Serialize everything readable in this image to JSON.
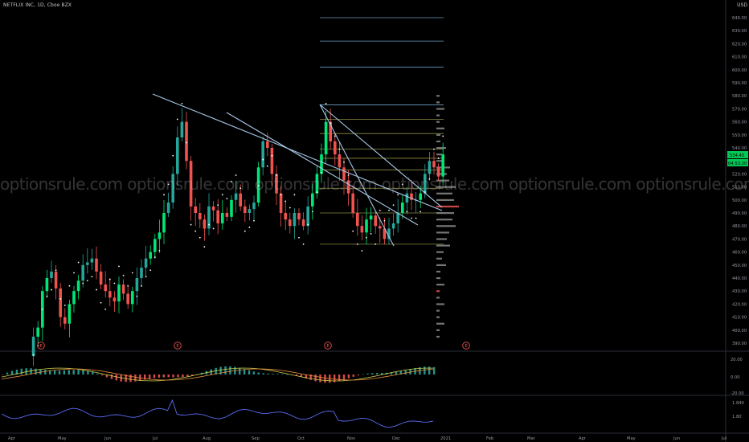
{
  "header": {
    "symbol_line": "NETFLIX INC, 1D, Cboe BZX",
    "currency": "USD"
  },
  "watermark": {
    "text": "optionsrule.com optionsrule.com optionsrule.com optionsrule.com optionsrule.com optionsrule.com optionsrule.com optionsrule.com optionsrule.com optio"
  },
  "price_axis": [
    "640.00",
    "630.00",
    "620.00",
    "610.00",
    "600.00",
    "590.00",
    "580.00",
    "570.00",
    "560.00",
    "550.00",
    "540.00",
    "530.00",
    "520.00",
    "510.00",
    "500.00",
    "490.00",
    "480.00",
    "470.00",
    "460.00",
    "450.00",
    "440.00",
    "430.00",
    "420.00",
    "410.00",
    "400.00",
    "390.00"
  ],
  "last_price_label": "534.45",
  "countdown_label": "04:53:20",
  "macd_axis": [
    "20.00",
    "0.00",
    "-20.00"
  ],
  "lower_axis": [
    "1.840",
    "1.80"
  ],
  "time_axis": [
    "Apr",
    "May",
    "Jun",
    "Jul",
    "Aug",
    "Sep",
    "Oct",
    "Nov",
    "Dec",
    "2021",
    "Feb",
    "Mar",
    "Apr",
    "May",
    "Jun",
    "Jul"
  ],
  "earnings_marker": "E",
  "colors": {
    "up": "#26a69a",
    "up_bright": "#00e676",
    "down": "#ef5350",
    "trend_line": "#a8c8e8",
    "fib_line": "#9c9c4a",
    "dots": "#ffffff",
    "price_tag": "#00c853"
  },
  "chart_data": {
    "type": "candlestick",
    "title": "NETFLIX INC, 1D, Cboe BZX",
    "ylim": [
      385,
      645
    ],
    "x_labels": [
      "Apr",
      "May",
      "Jun",
      "Jul",
      "Aug",
      "Sep",
      "Oct",
      "Nov",
      "Dec",
      "2021",
      "Feb",
      "Mar",
      "Apr",
      "May",
      "Jun",
      "Jul"
    ],
    "close_path": [
      [
        0,
        380
      ],
      [
        1,
        395
      ],
      [
        2,
        402
      ],
      [
        3,
        430
      ],
      [
        4,
        440
      ],
      [
        5,
        445
      ],
      [
        6,
        432
      ],
      [
        7,
        410
      ],
      [
        8,
        405
      ],
      [
        9,
        420
      ],
      [
        10,
        430
      ],
      [
        11,
        438
      ],
      [
        12,
        450
      ],
      [
        13,
        452
      ],
      [
        14,
        455
      ],
      [
        15,
        445
      ],
      [
        16,
        435
      ],
      [
        17,
        430
      ],
      [
        18,
        425
      ],
      [
        19,
        422
      ],
      [
        20,
        435
      ],
      [
        21,
        428
      ],
      [
        22,
        420
      ],
      [
        23,
        430
      ],
      [
        24,
        440
      ],
      [
        25,
        448
      ],
      [
        26,
        455
      ],
      [
        27,
        460
      ],
      [
        28,
        470
      ],
      [
        29,
        475
      ],
      [
        30,
        490
      ],
      [
        31,
        498
      ],
      [
        32,
        520
      ],
      [
        33,
        548
      ],
      [
        34,
        560
      ],
      [
        35,
        530
      ],
      [
        36,
        495
      ],
      [
        37,
        490
      ],
      [
        38,
        485
      ],
      [
        39,
        478
      ],
      [
        40,
        495
      ],
      [
        41,
        492
      ],
      [
        42,
        482
      ],
      [
        43,
        490
      ],
      [
        44,
        487
      ],
      [
        45,
        500
      ],
      [
        46,
        505
      ],
      [
        47,
        495
      ],
      [
        48,
        490
      ],
      [
        49,
        493
      ],
      [
        50,
        498
      ],
      [
        51,
        525
      ],
      [
        52,
        545
      ],
      [
        53,
        540
      ],
      [
        54,
        520
      ],
      [
        55,
        505
      ],
      [
        56,
        490
      ],
      [
        57,
        485
      ],
      [
        58,
        480
      ],
      [
        59,
        490
      ],
      [
        60,
        485
      ],
      [
        61,
        480
      ],
      [
        62,
        495
      ],
      [
        63,
        505
      ],
      [
        64,
        520
      ],
      [
        65,
        535
      ],
      [
        66,
        560
      ],
      [
        67,
        545
      ],
      [
        68,
        535
      ],
      [
        69,
        525
      ],
      [
        70,
        515
      ],
      [
        71,
        505
      ],
      [
        72,
        490
      ],
      [
        73,
        480
      ],
      [
        74,
        475
      ],
      [
        75,
        485
      ],
      [
        76,
        488
      ],
      [
        77,
        480
      ],
      [
        78,
        478
      ],
      [
        79,
        470
      ],
      [
        80,
        478
      ],
      [
        81,
        482
      ],
      [
        82,
        490
      ],
      [
        83,
        498
      ],
      [
        84,
        505
      ],
      [
        85,
        500
      ],
      [
        86,
        500
      ],
      [
        87,
        505
      ],
      [
        88,
        520
      ],
      [
        89,
        530
      ],
      [
        90,
        525
      ],
      [
        91,
        518
      ],
      [
        92,
        535
      ]
    ],
    "trendlines": [
      [
        [
          190,
          117
        ],
        [
          550,
          262
        ]
      ],
      [
        [
          282,
          140
        ],
        [
          520,
          280
        ]
      ],
      [
        [
          398,
          130
        ],
        [
          550,
          258
        ]
      ],
      [
        [
          398,
          130
        ],
        [
          490,
          306
        ]
      ]
    ],
    "fib_levels": [
      573,
      562,
      551,
      539,
      532,
      523,
      509,
      490,
      466
    ],
    "fib_extensions": [
      640,
      622,
      602
    ]
  }
}
